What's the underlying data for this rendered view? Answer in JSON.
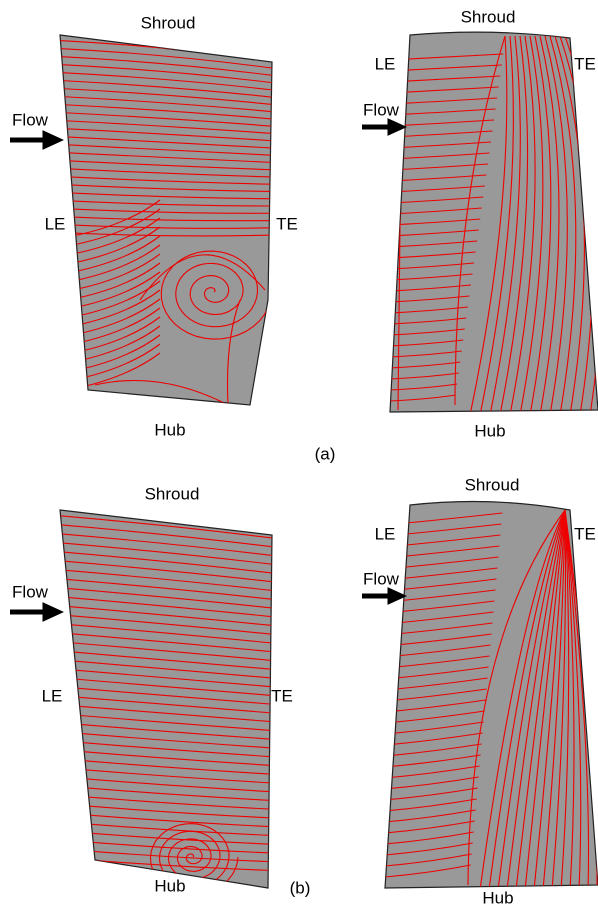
{
  "panels": [
    {
      "label": "(a)",
      "views": [
        {
          "top": "Shroud",
          "bottom": "Hub",
          "left": "LE",
          "right": "TE",
          "flow": "Flow"
        },
        {
          "top": "Shroud",
          "bottom": "Hub",
          "left": "LE",
          "right": "TE",
          "flow": "Flow"
        }
      ]
    },
    {
      "label": "(b)",
      "views": [
        {
          "top": "Shroud",
          "bottom": "Hub",
          "left": "LE",
          "right": "TE",
          "flow": "Flow"
        },
        {
          "top": "Shroud",
          "bottom": "Hub",
          "left": "LE",
          "right": "TE",
          "flow": "Flow"
        }
      ]
    }
  ]
}
